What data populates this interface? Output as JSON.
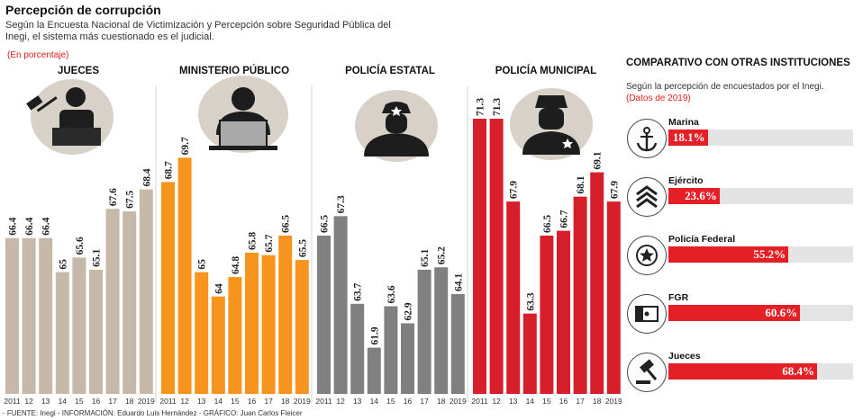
{
  "title": "Percepción de corrupción",
  "subtitle": "Según la Encuesta Nacional de Victimización y Percepción sobre Seguridad Pública del Inegi, el sistema más cuestionado es el judicial.",
  "units": "(En porcentaje)",
  "chart_data": [
    {
      "type": "bar",
      "title": "JUECES",
      "categories": [
        "2011",
        "12",
        "13",
        "14",
        "15",
        "16",
        "17",
        "18",
        "2019"
      ],
      "values": [
        66.4,
        66.4,
        66.4,
        65,
        65.6,
        65.1,
        67.6,
        67.5,
        68.4
      ],
      "labels": [
        "66.4",
        "66.4",
        "66.4",
        "65",
        "65.6",
        "65.1",
        "67.6",
        "67.5",
        "68.4"
      ],
      "color": "#c6b9aa",
      "ylim": [
        60,
        73
      ]
    },
    {
      "type": "bar",
      "title": "MINISTERIO PÚBLICO",
      "categories": [
        "2011",
        "12",
        "13",
        "14",
        "15",
        "16",
        "17",
        "18",
        "2019"
      ],
      "values": [
        68.7,
        69.7,
        65,
        64,
        64.8,
        65.8,
        65.7,
        66.5,
        65.5
      ],
      "labels": [
        "68.7",
        "69.7",
        "65",
        "64",
        "64.8",
        "65.8",
        "65.7",
        "66.5",
        "65.5"
      ],
      "color": "#f7941d",
      "ylim": [
        60,
        73
      ]
    },
    {
      "type": "bar",
      "title": "POLICÍA ESTATAL",
      "categories": [
        "2011",
        "12",
        "13",
        "14",
        "15",
        "16",
        "17",
        "18",
        "2019"
      ],
      "values": [
        66.5,
        67.3,
        63.7,
        61.9,
        63.6,
        62.9,
        65.1,
        65.2,
        64.1
      ],
      "labels": [
        "66.5",
        "67.3",
        "63.7",
        "61.9",
        "63.6",
        "62.9",
        "65.1",
        "65.2",
        "64.1"
      ],
      "color": "#808080",
      "ylim": [
        60,
        73
      ]
    },
    {
      "type": "bar",
      "title": "POLICÍA MUNICIPAL",
      "categories": [
        "2011",
        "12",
        "13",
        "14",
        "15",
        "16",
        "17",
        "18",
        "2019"
      ],
      "values": [
        71.3,
        71.3,
        67.9,
        63.3,
        66.5,
        66.7,
        68.1,
        69.1,
        67.9
      ],
      "labels": [
        "71.3",
        "71.3",
        "67.9",
        "63.3",
        "66.5",
        "66.7",
        "68.1",
        "69.1",
        "67.9"
      ],
      "color": "#d71f2b",
      "ylim": [
        60,
        73
      ]
    },
    {
      "type": "bar",
      "title": "COMPARATIVO CON OTRAS INSTITUCIONES",
      "subtitle": "Según la percepción de encuestados por el Inegi.",
      "note": "(Datos de 2019)",
      "categories": [
        "Marina",
        "Ejército",
        "Policía Federal",
        "FGR",
        "Jueces"
      ],
      "values": [
        18.1,
        23.6,
        55.2,
        60.6,
        68.4
      ],
      "labels": [
        "18.1%",
        "23.6%",
        "55.2%",
        "60.6%",
        "68.4%"
      ],
      "xlim": [
        0,
        85
      ],
      "icons": [
        "anchor-icon",
        "chevrons-icon",
        "star-badge-icon",
        "flag-icon",
        "gavel-icon"
      ]
    }
  ],
  "source": "- FUENTE: Inegi - INFORMACIÓN: Eduardo Luis Hernández - GRÁFICO: Juan Carlos Fleicer"
}
